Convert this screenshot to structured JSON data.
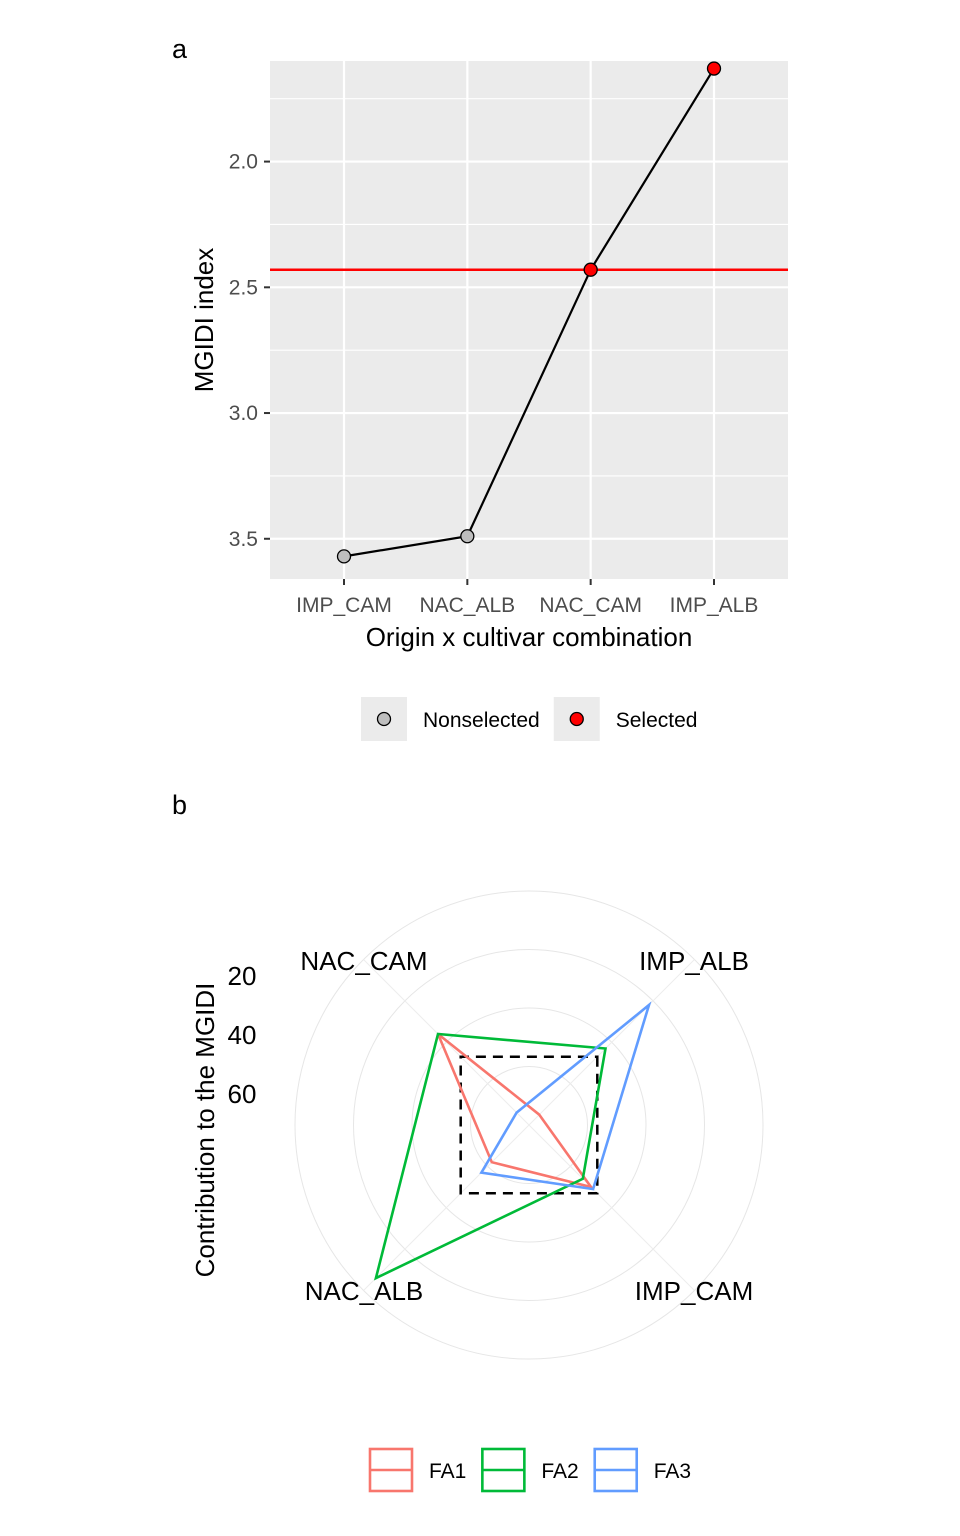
{
  "chart_data": [
    {
      "panel_label": "a",
      "type": "line",
      "xlabel": "Origin x cultivar combination",
      "ylabel": "MGIDI index",
      "categories": [
        "IMP_CAM",
        "NAC_ALB",
        "NAC_CAM",
        "IMP_ALB"
      ],
      "values": [
        3.57,
        3.49,
        2.43,
        1.63
      ],
      "status": [
        "Nonselected",
        "Nonselected",
        "Selected",
        "Selected"
      ],
      "threshold": 2.43,
      "y_reversed": true,
      "ylim": [
        1.6,
        3.66
      ],
      "yticks": [
        2.0,
        2.5,
        3.0,
        3.5
      ],
      "ytick_labels": [
        "2.0",
        "2.5",
        "3.0",
        "3.5"
      ],
      "grid": true,
      "legend": {
        "position": "bottom",
        "entries": [
          {
            "name": "Nonselected",
            "color": "#BEBEBE"
          },
          {
            "name": "Selected",
            "color": "#FF0000"
          }
        ]
      },
      "colors": {
        "line": "#000000",
        "threshold": "#FF0000",
        "panel_bg": "#EBEBEB",
        "grid": "#FFFFFF"
      }
    },
    {
      "panel_label": "b",
      "type": "radar",
      "ylabel": "Contribution to the MGIDI",
      "categories": [
        "IMP_ALB",
        "IMP_CAM",
        "NAC_ALB",
        "NAC_CAM"
      ],
      "r_ticks": [
        "20",
        "40",
        "60"
      ],
      "r_max": 80,
      "series": [
        {
          "name": "FA1",
          "color": "#F8766D",
          "values": [
            5,
            30,
            18,
            44
          ]
        },
        {
          "name": "FA2",
          "color": "#00BA38",
          "values": [
            37,
            26,
            74,
            44
          ]
        },
        {
          "name": "FA3",
          "color": "#619CFF",
          "values": [
            58,
            31,
            23,
            6
          ]
        }
      ],
      "reference": {
        "values": [
          33,
          33,
          33,
          33
        ],
        "style": "dashed",
        "color": "#000000"
      },
      "legend": {
        "position": "bottom"
      }
    }
  ]
}
